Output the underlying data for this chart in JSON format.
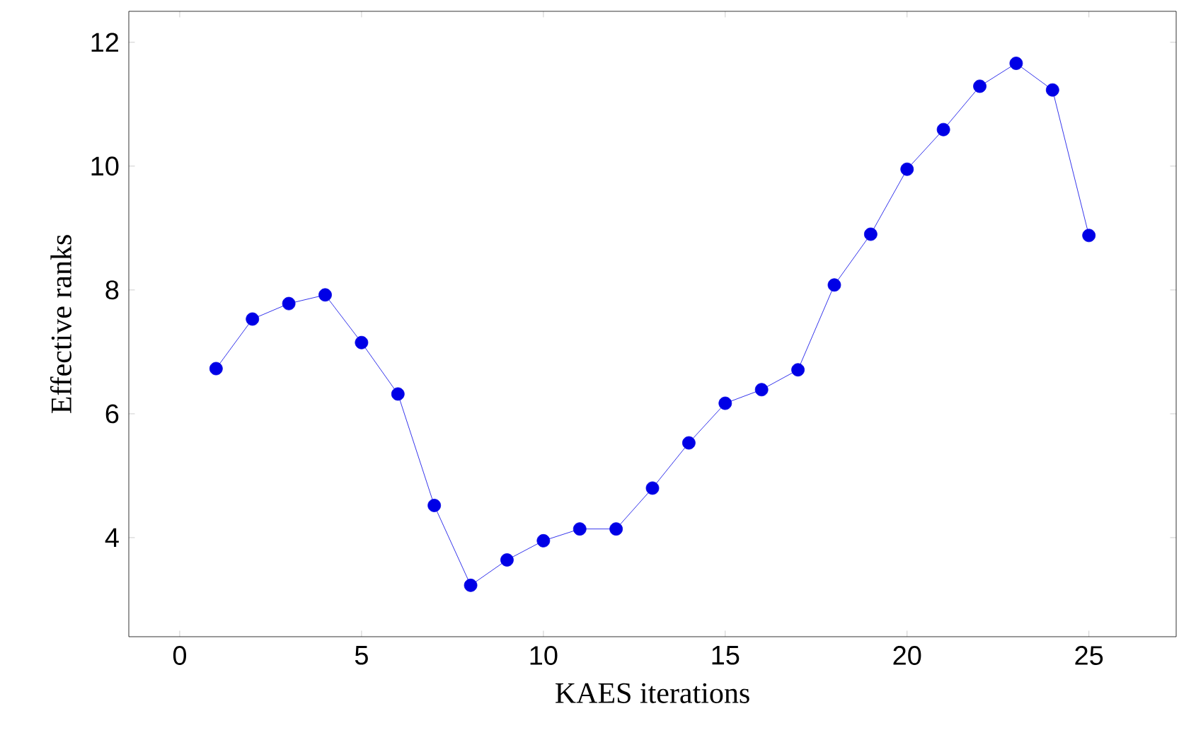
{
  "chart_data": {
    "type": "line",
    "xlabel": "KAES iterations",
    "ylabel": "Effective ranks",
    "x": [
      1,
      2,
      3,
      4,
      5,
      6,
      7,
      8,
      9,
      10,
      11,
      12,
      13,
      14,
      15,
      16,
      17,
      18,
      19,
      20,
      21,
      22,
      23,
      24,
      25
    ],
    "values": [
      6.73,
      7.53,
      7.78,
      7.92,
      7.15,
      6.32,
      4.52,
      3.23,
      3.64,
      3.95,
      4.14,
      4.14,
      4.8,
      5.53,
      6.17,
      6.39,
      6.71,
      8.08,
      8.9,
      9.95,
      10.59,
      11.29,
      11.66,
      11.23,
      8.88
    ],
    "color": "#0000e6",
    "marker": "circle",
    "line_style": "solid",
    "xlim": [
      -1.4,
      27.4
    ],
    "ylim": [
      2.4,
      12.5
    ],
    "xticks": [
      0,
      5,
      10,
      15,
      20,
      25
    ],
    "yticks": [
      4,
      6,
      8,
      10,
      12
    ]
  }
}
